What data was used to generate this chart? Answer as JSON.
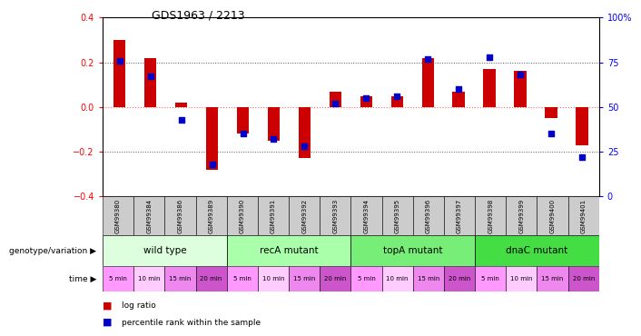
{
  "title": "GDS1963 / 2213",
  "samples": [
    "GSM99380",
    "GSM99384",
    "GSM99386",
    "GSM99389",
    "GSM99390",
    "GSM99391",
    "GSM99392",
    "GSM99393",
    "GSM99394",
    "GSM99395",
    "GSM99396",
    "GSM99397",
    "GSM99398",
    "GSM99399",
    "GSM99400",
    "GSM99401"
  ],
  "log_ratio": [
    0.3,
    0.22,
    0.02,
    -0.28,
    -0.12,
    -0.15,
    -0.23,
    0.07,
    0.05,
    0.05,
    0.22,
    0.07,
    0.17,
    0.16,
    -0.05,
    -0.17
  ],
  "percentile": [
    76,
    67,
    43,
    18,
    35,
    32,
    28,
    52,
    55,
    56,
    77,
    60,
    78,
    68,
    35,
    22
  ],
  "ylim_left": [
    -0.4,
    0.4
  ],
  "ylim_right": [
    0,
    100
  ],
  "yticks_left": [
    -0.4,
    -0.2,
    0.0,
    0.2,
    0.4
  ],
  "yticks_right": [
    0,
    25,
    50,
    75,
    100
  ],
  "genotype_groups": [
    {
      "label": "wild type",
      "start": 0,
      "end": 4,
      "color": "#ddffdd"
    },
    {
      "label": "recA mutant",
      "start": 4,
      "end": 8,
      "color": "#aaffaa"
    },
    {
      "label": "topA mutant",
      "start": 8,
      "end": 12,
      "color": "#77ee77"
    },
    {
      "label": "dnaC mutant",
      "start": 12,
      "end": 16,
      "color": "#44dd44"
    }
  ],
  "time_labels": [
    "5 min",
    "10 min",
    "15 min",
    "20 min",
    "5 min",
    "10 min",
    "15 min",
    "20 min",
    "5 min",
    "10 min",
    "15 min",
    "20 min",
    "5 min",
    "10 min",
    "15 min",
    "20 min"
  ],
  "time_colors": [
    "#ff99ff",
    "#ffbbff",
    "#ee88ee",
    "#cc66cc",
    "#ff99ff",
    "#ffbbff",
    "#ee88ee",
    "#cc66cc",
    "#ff99ff",
    "#ffbbff",
    "#ee88ee",
    "#cc66cc",
    "#ff99ff",
    "#ffbbff",
    "#ee88ee",
    "#cc66cc"
  ],
  "bar_color_red": "#cc0000",
  "bar_color_blue": "#0000cc",
  "zero_line_color": "#ff6666",
  "dotted_color": "#555555",
  "background_color": "#ffffff",
  "sample_label_bg": "#cccccc",
  "label_genotype": "genotype/variation",
  "label_time": "time",
  "legend_red": "log ratio",
  "legend_blue": "percentile rank within the sample",
  "bar_width": 0.4
}
